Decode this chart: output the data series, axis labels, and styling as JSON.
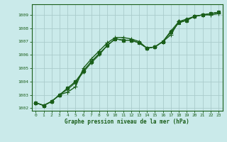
{
  "xlabel": "Graphe pression niveau de la mer (hPa)",
  "ylabel": "",
  "background_color": "#caeaea",
  "grid_color": "#aacccc",
  "line_color": "#1a5e1a",
  "xlim": [
    -0.5,
    23.5
  ],
  "ylim": [
    1001.8,
    1009.8
  ],
  "yticks": [
    1002,
    1003,
    1004,
    1005,
    1006,
    1007,
    1008,
    1009
  ],
  "xticks": [
    0,
    1,
    2,
    3,
    4,
    5,
    6,
    7,
    8,
    9,
    10,
    11,
    12,
    13,
    14,
    15,
    16,
    17,
    18,
    19,
    20,
    21,
    22,
    23
  ],
  "series": [
    {
      "x": [
        0,
        1,
        2,
        3,
        4,
        5,
        6,
        7,
        8,
        9,
        10,
        11,
        12,
        13,
        14,
        15,
        16,
        17,
        18,
        19,
        20,
        21,
        22,
        23
      ],
      "y": [
        1002.4,
        1002.2,
        1002.5,
        1003.0,
        1003.2,
        1003.6,
        1005.0,
        1005.7,
        1006.3,
        1006.9,
        1007.3,
        1007.3,
        1007.2,
        1007.0,
        1006.5,
        1006.6,
        1007.0,
        1007.5,
        1008.5,
        1008.6,
        1008.9,
        1009.0,
        1009.0,
        1009.1
      ],
      "marker": "+",
      "markersize": 4.5,
      "linewidth": 1.0
    },
    {
      "x": [
        0,
        1,
        2,
        3,
        4,
        5,
        6,
        7,
        8,
        9,
        10,
        11,
        12,
        13,
        14,
        15,
        16,
        17,
        18,
        19,
        20,
        21,
        22,
        23
      ],
      "y": [
        1002.4,
        1002.2,
        1002.5,
        1003.0,
        1003.5,
        1004.0,
        1004.8,
        1005.5,
        1006.1,
        1006.7,
        1007.2,
        1007.1,
        1007.1,
        1006.9,
        1006.5,
        1006.6,
        1007.0,
        1007.8,
        1008.5,
        1008.7,
        1008.9,
        1009.0,
        1009.1,
        1009.2
      ],
      "marker": "D",
      "markersize": 2.5,
      "linewidth": 0.8
    },
    {
      "x": [
        0,
        1,
        2,
        3,
        4,
        5,
        6,
        7,
        8,
        9,
        10,
        11,
        12,
        13,
        14,
        15,
        16,
        17,
        18,
        19,
        20,
        21,
        22,
        23
      ],
      "y": [
        1002.4,
        1002.2,
        1002.5,
        1003.0,
        1003.5,
        1004.0,
        1004.8,
        1005.5,
        1006.1,
        1006.7,
        1007.2,
        1007.1,
        1007.1,
        1006.9,
        1006.5,
        1006.6,
        1007.0,
        1007.7,
        1008.4,
        1008.6,
        1008.9,
        1009.0,
        1009.1,
        1009.2
      ],
      "marker": "s",
      "markersize": 2.5,
      "linewidth": 0.8
    },
    {
      "x": [
        0,
        1,
        2,
        3,
        4,
        5,
        6,
        7,
        8,
        9,
        10,
        11,
        12,
        13,
        14,
        15,
        16,
        17,
        18,
        19,
        20,
        21,
        22,
        23
      ],
      "y": [
        1002.4,
        1002.2,
        1002.5,
        1003.0,
        1003.4,
        1003.9,
        1004.7,
        1005.4,
        1006.0,
        1006.7,
        1007.2,
        1007.1,
        1007.1,
        1006.9,
        1006.5,
        1006.6,
        1007.0,
        1007.7,
        1008.4,
        1008.6,
        1008.9,
        1009.0,
        1009.1,
        1009.2
      ],
      "marker": "v",
      "markersize": 2.5,
      "linewidth": 0.8
    }
  ]
}
